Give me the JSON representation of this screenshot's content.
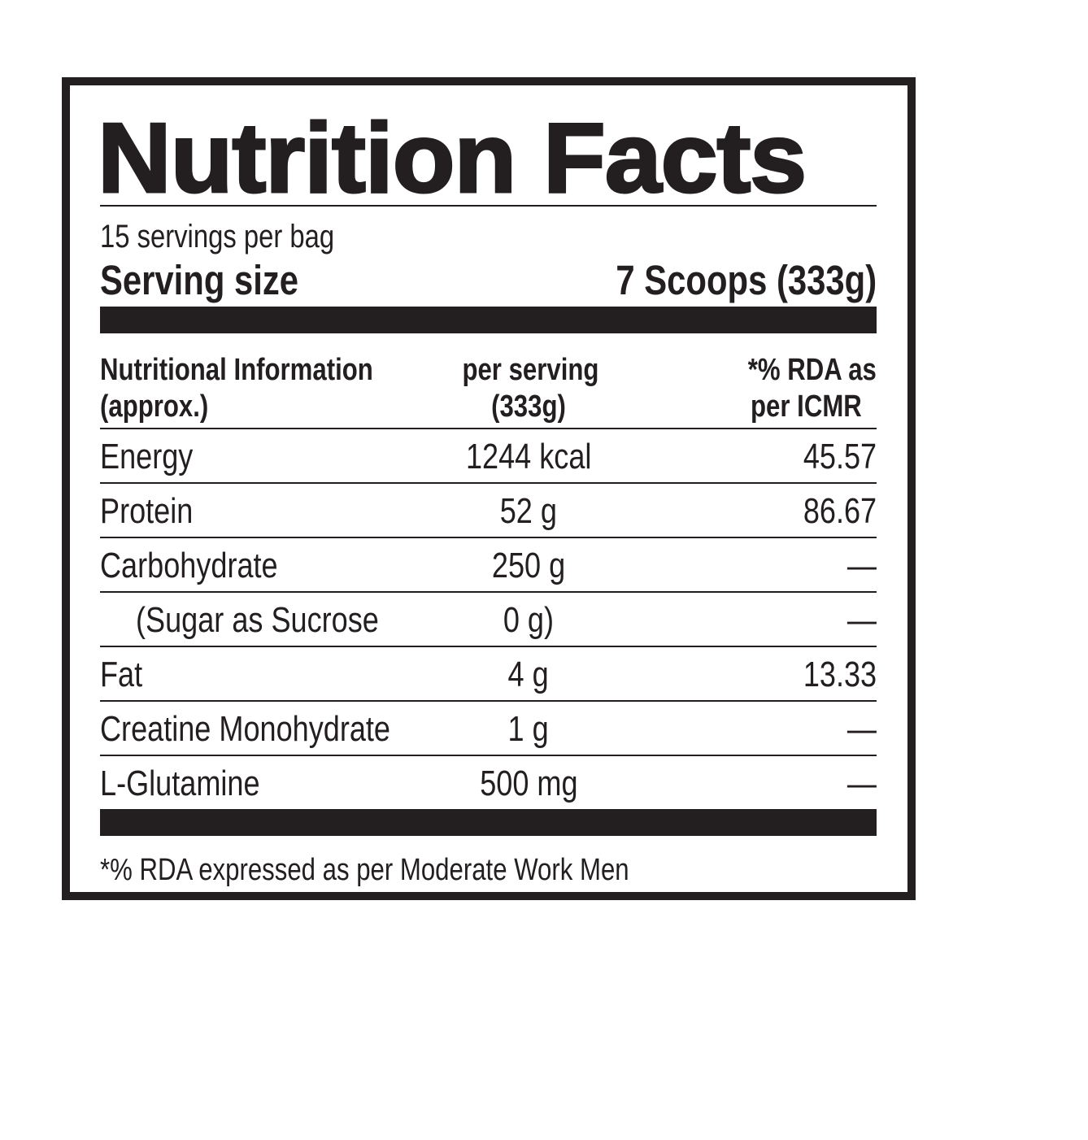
{
  "title": "Nutrition Facts",
  "servings_per_container": "15 servings per bag",
  "serving_size": {
    "label": "Serving size",
    "value": "7 Scoops (333g)"
  },
  "table": {
    "headers": {
      "nutrient_line1": "Nutritional Information",
      "nutrient_line2": "(approx.)",
      "per_serving_line1": "per serving",
      "per_serving_line2": "(333g)",
      "rda_line1": "*% RDA as",
      "rda_line2": "per ICMR"
    },
    "rows": [
      {
        "name": "Energy",
        "amount": "1244 kcal",
        "rda": "45.57"
      },
      {
        "name": "Protein",
        "amount": "52 g",
        "rda": "86.67"
      },
      {
        "name": "Carbohydrate",
        "amount": "250 g",
        "rda": "—"
      },
      {
        "name": "(Sugar as Sucrose",
        "amount": "0 g)",
        "rda": "—"
      },
      {
        "name": "Fat",
        "amount": "4 g",
        "rda": "13.33"
      },
      {
        "name": "Creatine Monohydrate",
        "amount": "1 g",
        "rda": "—"
      },
      {
        "name": "L-Glutamine",
        "amount": "500 mg",
        "rda": "—"
      }
    ]
  },
  "footnote": "*% RDA expressed as per Moderate Work Men"
}
